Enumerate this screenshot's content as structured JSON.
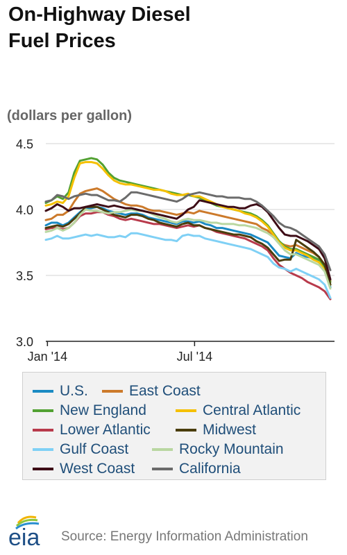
{
  "title_lines": [
    "On-Highway Diesel",
    "Fuel Prices"
  ],
  "units": "(dollars per gallon)",
  "source": "Source: Energy Information Administration",
  "logo_text": "eia",
  "chart_data": {
    "type": "line",
    "x": [
      "2013-12-30",
      "2014-01-06",
      "2014-01-13",
      "2014-01-20",
      "2014-01-27",
      "2014-02-03",
      "2014-02-10",
      "2014-02-17",
      "2014-02-24",
      "2014-03-03",
      "2014-03-10",
      "2014-03-17",
      "2014-03-24",
      "2014-03-31",
      "2014-04-07",
      "2014-04-14",
      "2014-04-21",
      "2014-04-28",
      "2014-05-05",
      "2014-05-12",
      "2014-05-19",
      "2014-05-26",
      "2014-06-02",
      "2014-06-09",
      "2014-06-16",
      "2014-06-23",
      "2014-06-30",
      "2014-07-07",
      "2014-07-14",
      "2014-07-21",
      "2014-07-28",
      "2014-08-04",
      "2014-08-11",
      "2014-08-18",
      "2014-08-25",
      "2014-09-01",
      "2014-09-08",
      "2014-09-15",
      "2014-09-22",
      "2014-09-29",
      "2014-10-06",
      "2014-10-13",
      "2014-10-20",
      "2014-10-27",
      "2014-11-03",
      "2014-11-10",
      "2014-11-17",
      "2014-11-24",
      "2014-12-01",
      "2014-12-08",
      "2014-12-15"
    ],
    "x_ticks": [
      "Jan '14",
      "Jul '14"
    ],
    "x_tick_values": [
      "2014-01-01",
      "2014-07-01"
    ],
    "ylim": [
      3.0,
      4.5
    ],
    "y_ticks": [
      3.0,
      3.5,
      4.0,
      4.5
    ],
    "y_tick_labels": [
      "3.0",
      "3.5",
      "4.0",
      "4.5"
    ],
    "grid": "horizontal",
    "legend_position": "bottom",
    "series": [
      {
        "name": "U.S.",
        "color": "#1a8ac3",
        "values": [
          3.88,
          3.9,
          3.9,
          3.88,
          3.9,
          3.94,
          3.98,
          4.01,
          4.01,
          4.02,
          4.01,
          3.99,
          3.98,
          3.97,
          3.96,
          3.97,
          3.97,
          3.96,
          3.94,
          3.93,
          3.92,
          3.91,
          3.9,
          3.89,
          3.91,
          3.91,
          3.9,
          3.91,
          3.89,
          3.88,
          3.86,
          3.86,
          3.85,
          3.84,
          3.83,
          3.82,
          3.81,
          3.79,
          3.77,
          3.75,
          3.7,
          3.65,
          3.64,
          3.63,
          3.67,
          3.65,
          3.64,
          3.63,
          3.61,
          3.56,
          3.41
        ]
      },
      {
        "name": "East Coast",
        "color": "#cc7a2b",
        "values": [
          3.92,
          3.93,
          3.96,
          3.96,
          3.99,
          4.06,
          4.12,
          4.14,
          4.15,
          4.16,
          4.14,
          4.11,
          4.08,
          4.06,
          4.04,
          4.03,
          4.03,
          4.02,
          4.0,
          3.99,
          3.99,
          3.98,
          3.97,
          3.96,
          3.97,
          3.98,
          3.97,
          3.99,
          3.98,
          3.97,
          3.96,
          3.95,
          3.94,
          3.93,
          3.92,
          3.91,
          3.9,
          3.89,
          3.86,
          3.84,
          3.79,
          3.75,
          3.73,
          3.72,
          3.73,
          3.71,
          3.69,
          3.67,
          3.64,
          3.58,
          3.46
        ]
      },
      {
        "name": "New England",
        "color": "#52a132",
        "values": [
          4.05,
          4.07,
          4.1,
          4.08,
          4.13,
          4.28,
          4.37,
          4.38,
          4.39,
          4.38,
          4.34,
          4.28,
          4.24,
          4.22,
          4.21,
          4.2,
          4.19,
          4.18,
          4.17,
          4.16,
          4.15,
          4.14,
          4.13,
          4.12,
          4.11,
          4.11,
          4.1,
          4.09,
          4.07,
          4.05,
          4.03,
          4.02,
          4.01,
          4.0,
          3.99,
          3.98,
          3.97,
          3.95,
          3.92,
          3.88,
          3.82,
          3.76,
          3.72,
          3.7,
          3.7,
          3.68,
          3.66,
          3.64,
          3.62,
          3.56,
          3.45
        ]
      },
      {
        "name": "Central Atlantic",
        "color": "#f5c000",
        "values": [
          4.03,
          4.04,
          4.06,
          4.05,
          4.1,
          4.24,
          4.35,
          4.36,
          4.36,
          4.35,
          4.31,
          4.26,
          4.22,
          4.2,
          4.19,
          4.19,
          4.18,
          4.17,
          4.16,
          4.15,
          4.15,
          4.14,
          4.12,
          4.11,
          4.11,
          4.12,
          4.1,
          4.1,
          4.08,
          4.06,
          4.04,
          4.02,
          4.01,
          4.0,
          3.99,
          3.97,
          3.96,
          3.94,
          3.91,
          3.87,
          3.81,
          3.75,
          3.71,
          3.69,
          3.69,
          3.67,
          3.65,
          3.62,
          3.6,
          3.54,
          3.43
        ]
      },
      {
        "name": "Lower Atlantic",
        "color": "#b83a4b",
        "values": [
          3.85,
          3.86,
          3.86,
          3.85,
          3.86,
          3.9,
          3.95,
          3.97,
          3.97,
          3.98,
          3.98,
          3.96,
          3.95,
          3.93,
          3.92,
          3.93,
          3.92,
          3.91,
          3.9,
          3.89,
          3.89,
          3.88,
          3.87,
          3.86,
          3.87,
          3.88,
          3.87,
          3.88,
          3.86,
          3.85,
          3.83,
          3.82,
          3.81,
          3.8,
          3.79,
          3.78,
          3.76,
          3.74,
          3.72,
          3.69,
          3.63,
          3.58,
          3.55,
          3.52,
          3.5,
          3.48,
          3.45,
          3.43,
          3.41,
          3.38,
          3.32
        ]
      },
      {
        "name": "Midwest",
        "color": "#4a3d0c",
        "values": [
          3.86,
          3.87,
          3.88,
          3.87,
          3.89,
          3.93,
          3.97,
          4.02,
          4.02,
          4.02,
          4.0,
          3.98,
          3.96,
          3.95,
          3.94,
          3.96,
          3.96,
          3.95,
          3.93,
          3.92,
          3.9,
          3.89,
          3.88,
          3.87,
          3.89,
          3.9,
          3.88,
          3.88,
          3.86,
          3.85,
          3.84,
          3.83,
          3.82,
          3.81,
          3.81,
          3.8,
          3.79,
          3.76,
          3.74,
          3.71,
          3.66,
          3.61,
          3.62,
          3.62,
          3.77,
          3.74,
          3.71,
          3.68,
          3.64,
          3.58,
          3.43
        ]
      },
      {
        "name": "Gulf Coast",
        "color": "#7fd0f5",
        "values": [
          3.77,
          3.78,
          3.8,
          3.78,
          3.78,
          3.79,
          3.8,
          3.81,
          3.8,
          3.81,
          3.8,
          3.79,
          3.79,
          3.8,
          3.79,
          3.82,
          3.82,
          3.81,
          3.8,
          3.79,
          3.78,
          3.77,
          3.77,
          3.76,
          3.8,
          3.81,
          3.8,
          3.8,
          3.78,
          3.77,
          3.76,
          3.75,
          3.74,
          3.73,
          3.72,
          3.71,
          3.7,
          3.68,
          3.66,
          3.64,
          3.59,
          3.56,
          3.55,
          3.53,
          3.55,
          3.53,
          3.51,
          3.49,
          3.47,
          3.43,
          3.33
        ]
      },
      {
        "name": "Rocky Mountain",
        "color": "#b9d7a1",
        "values": [
          3.83,
          3.84,
          3.86,
          3.84,
          3.86,
          3.9,
          3.96,
          4.0,
          3.99,
          3.99,
          3.98,
          3.97,
          3.98,
          3.98,
          3.99,
          4.0,
          3.99,
          3.99,
          3.98,
          3.96,
          3.94,
          3.93,
          3.91,
          3.9,
          3.92,
          3.93,
          3.92,
          3.92,
          3.91,
          3.9,
          3.9,
          3.89,
          3.89,
          3.89,
          3.88,
          3.88,
          3.87,
          3.86,
          3.84,
          3.82,
          3.79,
          3.74,
          3.69,
          3.66,
          3.66,
          3.64,
          3.62,
          3.6,
          3.58,
          3.53,
          3.4
        ]
      },
      {
        "name": "West Coast",
        "color": "#3d0c16",
        "values": [
          3.99,
          4.01,
          4.04,
          4.02,
          3.99,
          4.01,
          4.01,
          4.02,
          4.03,
          4.04,
          4.03,
          4.02,
          4.03,
          4.02,
          4.01,
          4.01,
          4.0,
          3.99,
          3.98,
          3.97,
          3.96,
          3.95,
          3.94,
          3.93,
          3.96,
          4.0,
          4.02,
          4.07,
          4.06,
          4.05,
          4.04,
          4.03,
          4.02,
          4.02,
          4.01,
          4.01,
          4.03,
          4.04,
          4.02,
          3.98,
          3.92,
          3.86,
          3.81,
          3.8,
          3.8,
          3.78,
          3.76,
          3.73,
          3.7,
          3.63,
          3.47
        ]
      },
      {
        "name": "California",
        "color": "#6b6b6b",
        "values": [
          4.06,
          4.07,
          4.11,
          4.1,
          4.08,
          4.1,
          4.11,
          4.12,
          4.11,
          4.11,
          4.09,
          4.07,
          4.07,
          4.06,
          4.09,
          4.13,
          4.13,
          4.12,
          4.11,
          4.1,
          4.09,
          4.08,
          4.07,
          4.06,
          4.08,
          4.11,
          4.12,
          4.13,
          4.12,
          4.11,
          4.1,
          4.1,
          4.09,
          4.09,
          4.09,
          4.08,
          4.08,
          4.06,
          4.03,
          3.99,
          3.95,
          3.9,
          3.87,
          3.86,
          3.84,
          3.81,
          3.78,
          3.75,
          3.72,
          3.66,
          3.54
        ]
      }
    ]
  }
}
